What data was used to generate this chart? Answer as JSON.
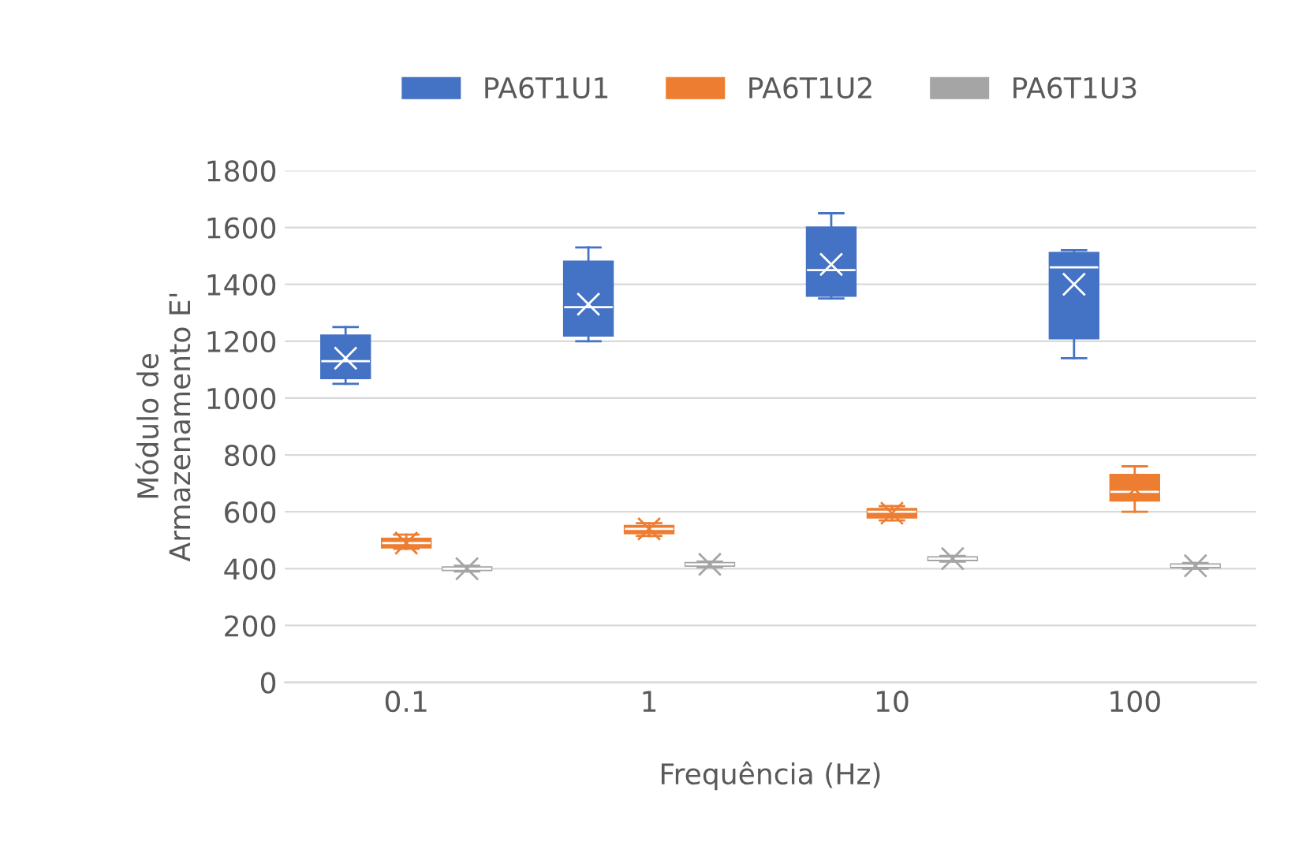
{
  "chart_data": {
    "type": "box",
    "xlabel": "Frequência (Hz)",
    "ylabel": "Módulo de\nArmazenamento E'",
    "categories": [
      "0.1",
      "1",
      "10",
      "100"
    ],
    "ylim": [
      0,
      1800
    ],
    "yticks": [
      0,
      200,
      400,
      600,
      800,
      1000,
      1200,
      1400,
      1600,
      1800
    ],
    "grid": "y",
    "legend": "top",
    "series": [
      {
        "name": "PA6T1U1",
        "color": "#4472c4",
        "boxes": [
          {
            "low": 1050,
            "q1": 1070,
            "median": 1130,
            "q3": 1220,
            "high": 1250,
            "mean": 1140
          },
          {
            "low": 1200,
            "q1": 1220,
            "median": 1320,
            "q3": 1480,
            "high": 1530,
            "mean": 1330
          },
          {
            "low": 1350,
            "q1": 1360,
            "median": 1450,
            "q3": 1600,
            "high": 1650,
            "mean": 1470
          },
          {
            "low": 1140,
            "q1": 1210,
            "median": 1460,
            "q3": 1510,
            "high": 1520,
            "mean": 1400
          }
        ]
      },
      {
        "name": "PA6T1U2",
        "color": "#ed7d31",
        "boxes": [
          {
            "low": 470,
            "q1": 475,
            "median": 490,
            "q3": 505,
            "high": 520,
            "mean": 490
          },
          {
            "low": 515,
            "q1": 525,
            "median": 540,
            "q3": 550,
            "high": 560,
            "mean": 540
          },
          {
            "low": 570,
            "q1": 580,
            "median": 600,
            "q3": 610,
            "high": 620,
            "mean": 595
          },
          {
            "low": 600,
            "q1": 640,
            "median": 670,
            "q3": 730,
            "high": 760,
            "mean": 680
          }
        ]
      },
      {
        "name": "PA6T1U3",
        "color": "#a5a5a5",
        "boxes": [
          {
            "low": 390,
            "q1": 395,
            "median": 400,
            "q3": 405,
            "high": 410,
            "mean": 400
          },
          {
            "low": 405,
            "q1": 410,
            "median": 415,
            "q3": 420,
            "high": 425,
            "mean": 415
          },
          {
            "low": 425,
            "q1": 430,
            "median": 435,
            "q3": 440,
            "high": 445,
            "mean": 435
          },
          {
            "low": 400,
            "q1": 405,
            "median": 410,
            "q3": 415,
            "high": 420,
            "mean": 410
          }
        ]
      }
    ]
  }
}
